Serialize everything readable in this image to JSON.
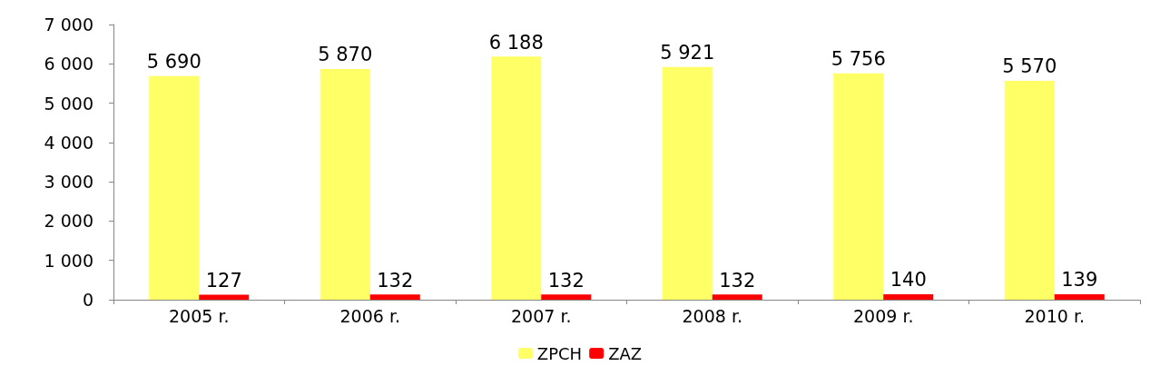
{
  "chart_data": {
    "type": "bar",
    "categories": [
      "2005 r.",
      "2006 r.",
      "2007 r.",
      "2008 r.",
      "2009 r.",
      "2010 r."
    ],
    "series": [
      {
        "name": "ZPCH",
        "color": "#ffff66",
        "values": [
          5690,
          5870,
          6188,
          5921,
          5756,
          5570
        ],
        "value_labels": [
          "5 690",
          "5 870",
          "6 188",
          "5 921",
          "5 756",
          "5 570"
        ]
      },
      {
        "name": "ZAZ",
        "color": "#ff0000",
        "values": [
          127,
          132,
          132,
          132,
          140,
          139
        ],
        "value_labels": [
          "127",
          "132",
          "132",
          "132",
          "140",
          "139"
        ]
      }
    ],
    "ylim": [
      0,
      7000
    ],
    "yticks": [
      {
        "value": 0,
        "label": "0"
      },
      {
        "value": 1000,
        "label": "1 000"
      },
      {
        "value": 2000,
        "label": "2 000"
      },
      {
        "value": 3000,
        "label": "3 000"
      },
      {
        "value": 4000,
        "label": "4 000"
      },
      {
        "value": 5000,
        "label": "5 000"
      },
      {
        "value": 6000,
        "label": "6 000"
      },
      {
        "value": 7000,
        "label": "7 000"
      }
    ],
    "grid": false,
    "legend": "bottom"
  }
}
